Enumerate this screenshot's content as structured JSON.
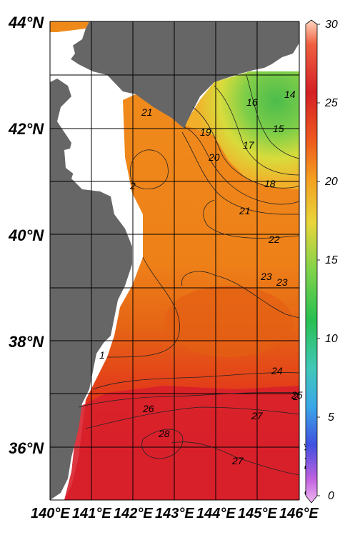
{
  "map": {
    "lat_labels": [
      "44°N",
      "42°N",
      "40°N",
      "38°N",
      "36°N"
    ],
    "lon_labels": [
      "140°E",
      "141°E",
      "142°E",
      "143°E",
      "144°E",
      "145°E",
      "146°E"
    ],
    "credit": "Ocean Data View",
    "colorbar": {
      "ticks": [
        "30",
        "25",
        "20",
        "15",
        "10",
        "5",
        "0"
      ],
      "min": 0,
      "max": 30
    },
    "contour_labels": [
      "14",
      "15",
      "16",
      "17",
      "18",
      "19",
      "20",
      "21",
      "21",
      "22",
      "23",
      "23",
      "24",
      "25",
      "26",
      "27",
      "27",
      "28",
      "2",
      "2",
      "1"
    ],
    "colors": {
      "land": "#666666",
      "water_orange": "#ef8a1a",
      "water_red": "#d42025",
      "water_green": "#64c441"
    }
  }
}
